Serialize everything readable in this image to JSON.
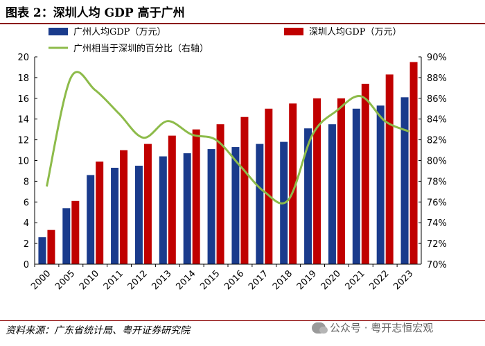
{
  "header": {
    "title": "图表 2：深圳人均 GDP 高于广州"
  },
  "footer": {
    "source": "资料来源：广东省统计局、粤开证券研究院",
    "watermark": "公众号 · 粤开志恒宏观"
  },
  "chart_data": {
    "type": "bar",
    "categories": [
      "2000",
      "2005",
      "2010",
      "2011",
      "2012",
      "2013",
      "2014",
      "2015",
      "2016",
      "2017",
      "2018",
      "2019",
      "2020",
      "2021",
      "2022",
      "2023"
    ],
    "series": [
      {
        "name": "广州人均GDP（万元）",
        "axis": "left",
        "kind": "bar",
        "color": "#1a3b8c",
        "values": [
          2.6,
          5.4,
          8.6,
          9.3,
          9.5,
          10.4,
          10.7,
          11.1,
          11.3,
          11.6,
          11.8,
          13.1,
          13.5,
          15.0,
          15.3,
          16.1
        ]
      },
      {
        "name": "深圳人均GDP（万元）",
        "axis": "right_bar",
        "kind": "bar",
        "color": "#c00000",
        "values": [
          3.3,
          6.1,
          9.9,
          11.0,
          11.6,
          12.4,
          13.0,
          13.5,
          14.2,
          15.0,
          15.5,
          16.0,
          16.0,
          17.4,
          18.3,
          19.5
        ]
      },
      {
        "name": "广州相当于深圳的百分比（右轴）",
        "axis": "right",
        "kind": "line",
        "color": "#8dbb4a",
        "values": [
          77.5,
          88.0,
          86.8,
          84.5,
          82.2,
          83.8,
          82.5,
          82.0,
          79.5,
          77.0,
          76.2,
          82.5,
          84.8,
          86.2,
          83.8,
          82.8
        ]
      }
    ],
    "ylim_left": [
      0,
      20
    ],
    "yticks_left": [
      "0",
      "2",
      "4",
      "6",
      "8",
      "10",
      "12",
      "14",
      "16",
      "18",
      "20"
    ],
    "ylim_right": [
      70,
      90
    ],
    "yticks_right": [
      "70%",
      "72%",
      "74%",
      "76%",
      "78%",
      "80%",
      "82%",
      "84%",
      "86%",
      "88%",
      "90%"
    ],
    "legend_position": "top"
  }
}
